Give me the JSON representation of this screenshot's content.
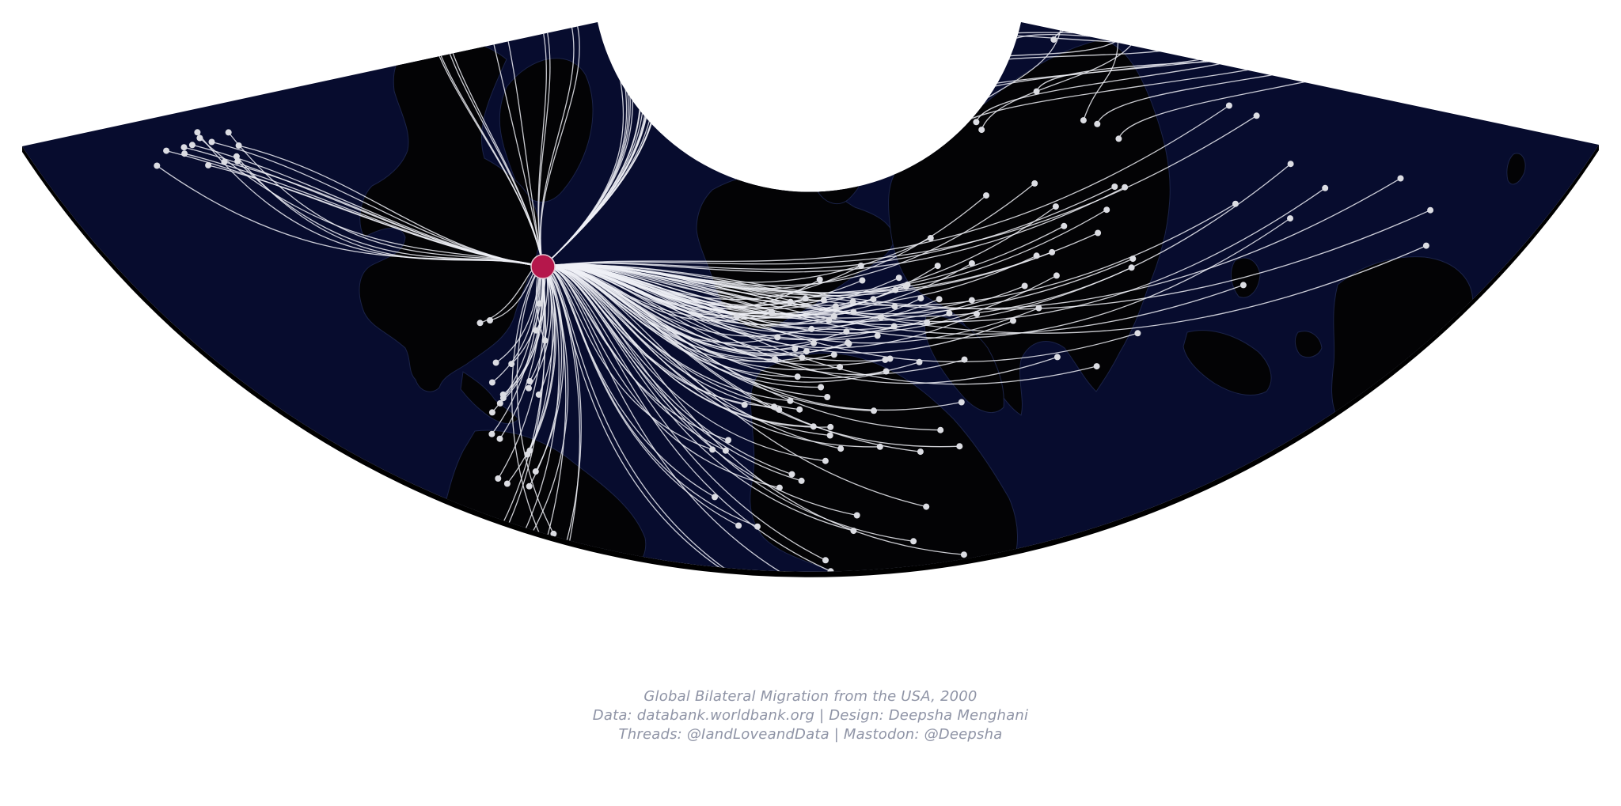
{
  "colors": {
    "ocean": "#070c2e",
    "land": "#030305",
    "land_edge": "#1b2348",
    "flow_line": "#eef0f6",
    "destination_dot": "#dcdde3",
    "origin_dot": "#b5174b",
    "background": "#ffffff"
  },
  "map": {
    "projection": "conic fan",
    "origin": "USA",
    "flow_count": 170,
    "flow_seed": 42
  },
  "credits": {
    "title": "Global Bilateral Migration from the USA, 2000",
    "source": "Data: databank.worldbank.org | Design: Deepsha Menghani",
    "social": "Threads: @IandLoveandData | Mastodon: @Deepsha"
  }
}
